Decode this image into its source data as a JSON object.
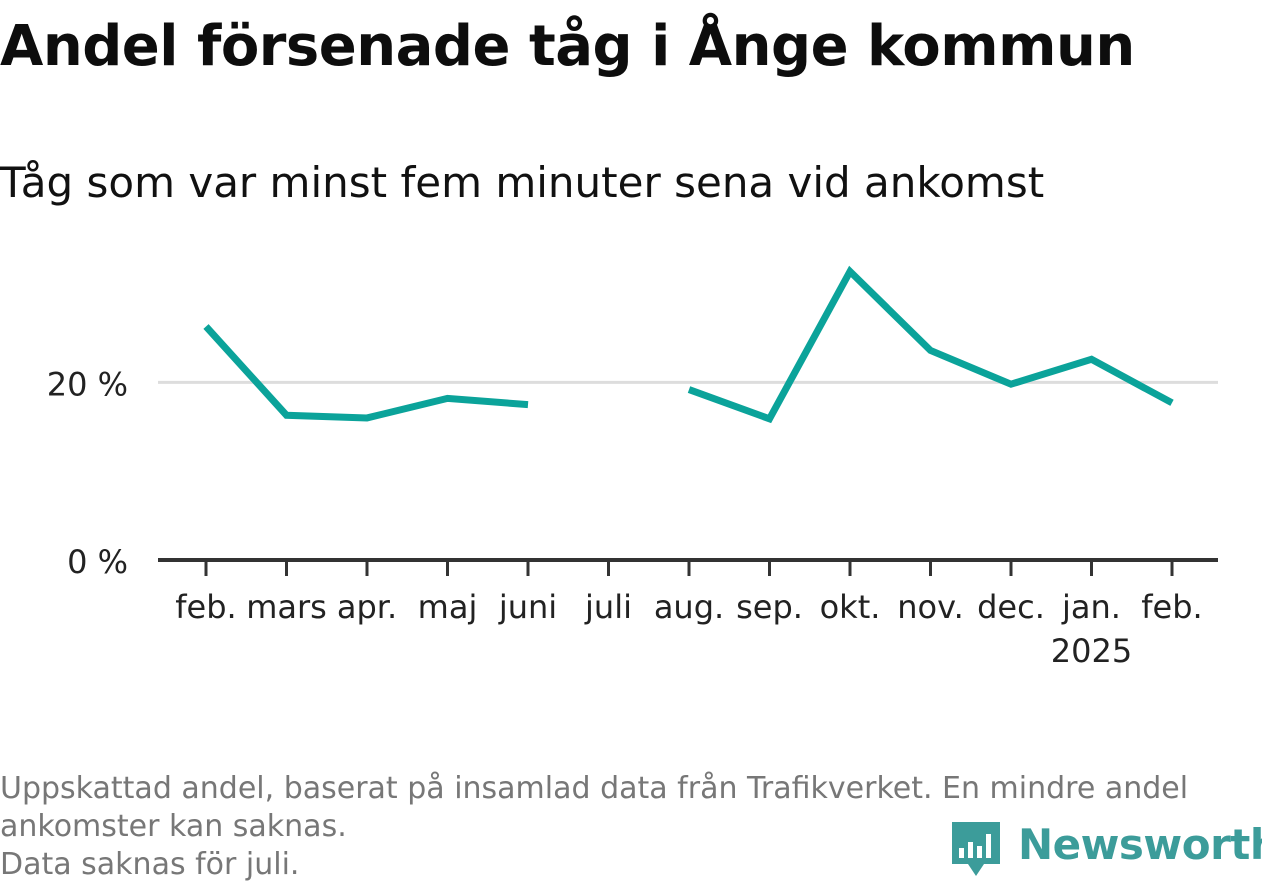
{
  "header": {
    "title": "Andel försenade tåg i Ånge kommun",
    "subtitle": "Tåg som var minst fem minuter sena vid ankomst"
  },
  "footnote": {
    "line1": "Uppskattad andel, baserat på insamlad data från Trafikverket. En mindre andel",
    "line2": "ankomster kan saknas.",
    "line3": "Data saknas för juli."
  },
  "brand": {
    "name": "Newsworthy",
    "color": "#3c9c9a"
  },
  "colors": {
    "line": "#0ba39a",
    "axis": "#333333",
    "grid": "#dddddd"
  },
  "chart_data": {
    "type": "line",
    "categories": [
      "feb.",
      "mars",
      "apr.",
      "maj",
      "juni",
      "juli",
      "aug.",
      "sep.",
      "okt.",
      "nov.",
      "dec.",
      "jan.",
      "feb."
    ],
    "category_sublabels": [
      "",
      "",
      "",
      "",
      "",
      "",
      "",
      "",
      "",
      "",
      "",
      "2025",
      ""
    ],
    "series": [
      {
        "values": [
          26.3,
          16.3,
          16.0,
          18.2,
          17.5,
          null,
          19.2,
          15.9,
          32.5,
          23.6,
          19.8,
          22.6,
          17.7
        ]
      }
    ],
    "yticks": [
      0,
      20
    ],
    "ytick_labels": [
      "0 %",
      "20 %"
    ],
    "ylim": [
      0,
      33
    ],
    "xlabel": "",
    "ylabel": "",
    "grid": true
  }
}
